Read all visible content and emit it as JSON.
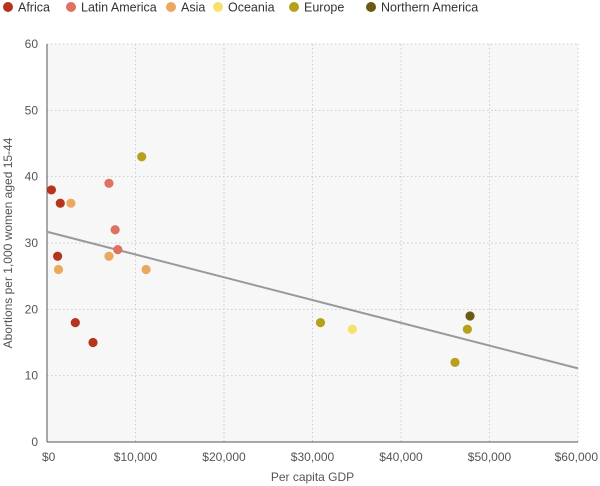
{
  "chart_data": {
    "type": "scatter",
    "xlabel": "Per capita GDP",
    "ylabel": "Abortions per 1,000 women aged 15-44",
    "xlim": [
      0,
      60000
    ],
    "ylim": [
      0,
      60
    ],
    "x_ticks": [
      0,
      10000,
      20000,
      30000,
      40000,
      50000,
      60000
    ],
    "x_tick_labels": [
      "$0",
      "$10,000",
      "$20,000",
      "$30,000",
      "$40,000",
      "$50,000",
      "$60,000"
    ],
    "y_ticks": [
      0,
      10,
      20,
      30,
      40,
      50,
      60
    ],
    "y_tick_labels": [
      "0",
      "10",
      "20",
      "30",
      "40",
      "50",
      "60"
    ],
    "grid": true,
    "legend_position": "top-left",
    "series": [
      {
        "name": "Africa",
        "color": "#b5341d",
        "points": [
          [
            500,
            38
          ],
          [
            1500,
            36
          ],
          [
            1200,
            28
          ],
          [
            3200,
            18
          ],
          [
            5200,
            15
          ]
        ]
      },
      {
        "name": "Latin America",
        "color": "#e07060",
        "points": [
          [
            7000,
            39
          ],
          [
            7700,
            32
          ],
          [
            8000,
            29
          ]
        ]
      },
      {
        "name": "Asia",
        "color": "#eba85e",
        "points": [
          [
            2700,
            36
          ],
          [
            1300,
            26
          ],
          [
            7000,
            28
          ],
          [
            11200,
            26
          ]
        ]
      },
      {
        "name": "Oceania",
        "color": "#f7e06e",
        "points": [
          [
            34500,
            17
          ]
        ]
      },
      {
        "name": "Europe",
        "color": "#b8a01a",
        "points": [
          [
            10700,
            43
          ],
          [
            30900,
            18
          ],
          [
            47500,
            17
          ],
          [
            46100,
            12
          ]
        ]
      },
      {
        "name": "Northern America",
        "color": "#6b5a14",
        "points": [
          [
            47800,
            19
          ]
        ]
      }
    ],
    "trendline": {
      "color": "#999999",
      "from": [
        0,
        31.7
      ],
      "to": [
        60000,
        11.1
      ]
    }
  }
}
